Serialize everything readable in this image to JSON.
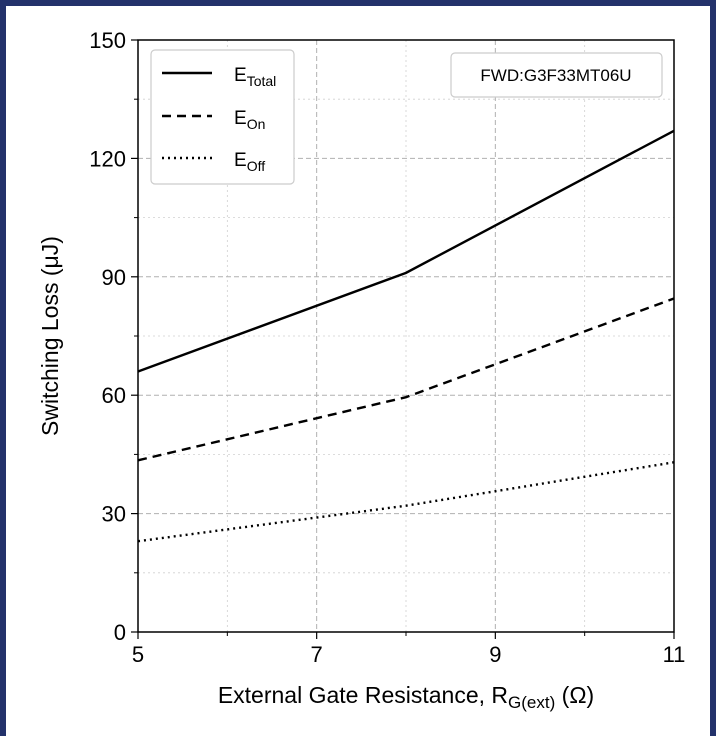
{
  "chart_data": {
    "type": "line",
    "xlabel": "External Gate Resistance, ",
    "xlabel_sub": "R",
    "xlabel_subscript": "G(ext)",
    "xlabel_unit": " (Ω)",
    "ylabel": "Switching Loss (μJ)",
    "xlim": [
      5,
      11
    ],
    "ylim": [
      0,
      150
    ],
    "x_ticks": [
      "5",
      "7",
      "9",
      "11"
    ],
    "y_ticks": [
      "0",
      "30",
      "60",
      "90",
      "120",
      "150"
    ],
    "grid": true,
    "legend_position": "top-left",
    "annotation": "FWD:G3F33MT06U",
    "x": [
      5,
      8,
      11
    ],
    "series": [
      {
        "name": "E",
        "sub": "Total",
        "style": "solid",
        "values": [
          66,
          91,
          127
        ]
      },
      {
        "name": "E",
        "sub": "On",
        "style": "dashed",
        "values": [
          43.5,
          59.5,
          84.5
        ]
      },
      {
        "name": "E",
        "sub": "Off",
        "style": "dotted",
        "values": [
          23,
          32,
          43
        ]
      }
    ]
  }
}
